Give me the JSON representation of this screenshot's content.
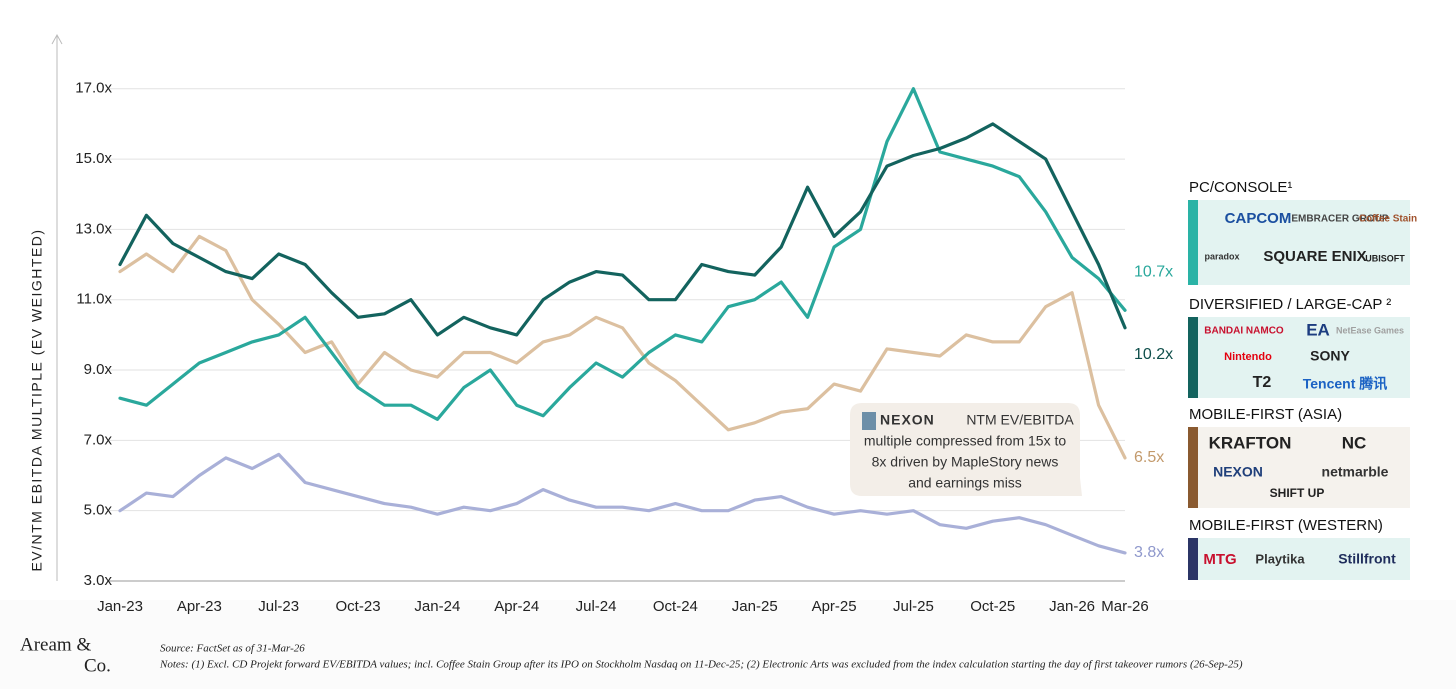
{
  "chart_data": {
    "type": "line",
    "y_label": "EV/NTM EBITDA MULTIPLE (EV WEIGHTED)",
    "categories": [
      "Jan-23",
      null,
      null,
      "Apr-23",
      null,
      null,
      "Jul-23",
      null,
      null,
      "Oct-23",
      null,
      null,
      "Jan-24",
      null,
      null,
      "Apr-24",
      null,
      null,
      "Jul-24",
      null,
      null,
      "Oct-24",
      null,
      null,
      "Jan-25",
      null,
      null,
      "Apr-25",
      null,
      null,
      "Jul-25",
      null,
      null,
      "Oct-25",
      null,
      null,
      "Jan-26",
      null,
      "Mar-26"
    ],
    "ylim": [
      3,
      18.5
    ],
    "yticks": [
      {
        "value": 3,
        "label": "3.0x"
      },
      {
        "value": 5,
        "label": "5.0x"
      },
      {
        "value": 7,
        "label": "7.0x"
      },
      {
        "value": 9,
        "label": "9.0x"
      },
      {
        "value": 11,
        "label": "11.0x"
      },
      {
        "value": 13,
        "label": "13.0x"
      },
      {
        "value": 15,
        "label": "15.0x"
      },
      {
        "value": 17,
        "label": "17.0x"
      }
    ],
    "grid": true,
    "series": [
      {
        "name": "PC/CONSOLE¹",
        "color": "#2aa89c",
        "legend_color": "#2ab3a6",
        "end_label": "10.7x",
        "companies": [
          "CAPCOM",
          "EMBRACER GROUP",
          "Coffee Stain",
          "paradox",
          "SQUARE ENIX",
          "UBISOFT"
        ],
        "values": [
          8.2,
          8.0,
          8.6,
          9.2,
          9.5,
          9.8,
          10.0,
          10.5,
          9.5,
          8.5,
          8.0,
          8.0,
          7.6,
          8.5,
          9.0,
          8.0,
          7.7,
          8.5,
          9.2,
          8.8,
          9.5,
          10.0,
          9.8,
          10.8,
          11.0,
          11.5,
          10.5,
          12.5,
          13.0,
          15.5,
          17.0,
          15.2,
          15.0,
          14.8,
          14.5,
          13.5,
          12.2,
          11.6,
          10.7
        ]
      },
      {
        "name": "DIVERSIFIED / LARGE-CAP ²",
        "color": "#13635e",
        "legend_color": "#13635e",
        "end_label": "10.2x",
        "companies": [
          "BANDAI NAMCO",
          "EA",
          "NetEase Games",
          "Nintendo",
          "SONY",
          "T2",
          "Tencent 腾讯"
        ],
        "values": [
          12.0,
          13.4,
          12.6,
          12.2,
          11.8,
          11.6,
          12.3,
          12.0,
          11.2,
          10.5,
          10.6,
          11.0,
          10.0,
          10.5,
          10.2,
          10.0,
          11.0,
          11.5,
          11.8,
          11.7,
          11.0,
          11.0,
          12.0,
          11.8,
          11.7,
          12.5,
          14.2,
          12.8,
          13.5,
          14.8,
          15.1,
          15.3,
          15.6,
          16.0,
          15.5,
          15.0,
          13.5,
          12.0,
          10.2
        ]
      },
      {
        "name": "MOBILE-FIRST (ASIA)",
        "color": "#dcc0a0",
        "legend_color": "#8a5a30",
        "end_label": "6.5x",
        "companies": [
          "KRAFTON",
          "NC",
          "NEXON",
          "netmarble",
          "SHIFT UP"
        ],
        "values": [
          11.8,
          12.3,
          11.8,
          12.8,
          12.4,
          11.0,
          10.3,
          9.5,
          9.8,
          8.6,
          9.5,
          9.0,
          8.8,
          9.5,
          9.5,
          9.2,
          9.8,
          10.0,
          10.5,
          10.2,
          9.2,
          8.7,
          8.0,
          7.3,
          7.5,
          7.8,
          7.9,
          8.6,
          8.4,
          9.6,
          9.5,
          9.4,
          10.0,
          9.8,
          9.8,
          10.8,
          11.2,
          8.0,
          6.5
        ]
      },
      {
        "name": "MOBILE-FIRST (WESTERN)",
        "color": "#a9b0d8",
        "legend_color": "#2b3566",
        "end_label": "3.8x",
        "companies": [
          "MTG",
          "Playtika",
          "Stillfront"
        ],
        "values": [
          5.0,
          5.5,
          5.4,
          6.0,
          6.5,
          6.2,
          6.6,
          5.8,
          5.6,
          5.4,
          5.2,
          5.1,
          4.9,
          5.1,
          5.0,
          5.2,
          5.6,
          5.3,
          5.1,
          5.1,
          5.0,
          5.2,
          5.0,
          5.0,
          5.3,
          5.4,
          5.1,
          4.9,
          5.0,
          4.9,
          5.0,
          4.6,
          4.5,
          4.7,
          4.8,
          4.6,
          4.3,
          4.0,
          3.8
        ]
      }
    ],
    "annotation": {
      "logo": "NEXON",
      "lines": [
        "NTM EV/EBITDA",
        "multiple compressed from 15x to",
        "8x driven by MapleStory news",
        "and earnings miss"
      ]
    },
    "source": "Source: FactSet as of 31-Mar-26",
    "notes": "Notes: (1) Excl. CD Projekt forward EV/EBITDA values; incl. Coffee Stain Group after its IPO on Stockholm Nasdaq on 11-Dec-25; (2) Electronic Arts was excluded from the index calculation starting the day of first takeover rumors (26-Sep-25)",
    "brand": [
      "Aream &",
      "Co."
    ]
  }
}
